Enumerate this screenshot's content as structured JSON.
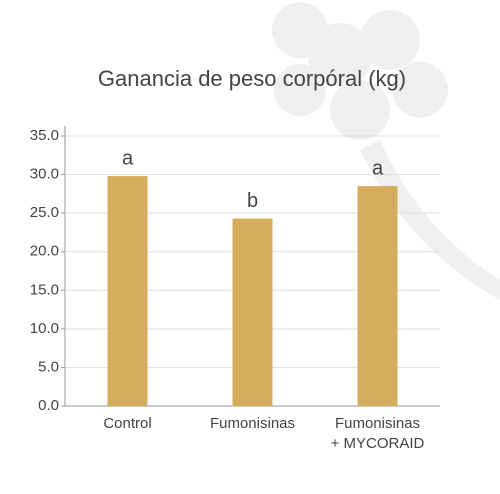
{
  "chart_data": {
    "type": "bar",
    "title": "Ganancia de peso corpóral (kg)",
    "categories": [
      "Control",
      "Fumonisinas",
      "Fumonisinas\n+ MYCORAID"
    ],
    "values": [
      29.8,
      24.3,
      28.5
    ],
    "annotations": [
      "a",
      "b",
      "a"
    ],
    "color": "#d5ab5c",
    "ylim": [
      0,
      35
    ],
    "yticks": [
      {
        "value": 0,
        "label": "0.0"
      },
      {
        "value": 5,
        "label": "5.0"
      },
      {
        "value": 10,
        "label": "10.0"
      },
      {
        "value": 15,
        "label": "15.0"
      },
      {
        "value": 20,
        "label": "20.0"
      },
      {
        "value": 25,
        "label": "25.0"
      },
      {
        "value": 30,
        "label": "30.0"
      },
      {
        "value": 35,
        "label": "35.0"
      }
    ],
    "grid": true
  }
}
